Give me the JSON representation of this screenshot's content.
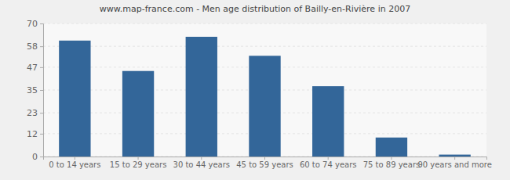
{
  "chart_data": {
    "type": "bar",
    "title": "www.map-france.com - Men age distribution of Bailly-en-Rivière in 2007",
    "categories": [
      "0 to 14 years",
      "15 to 29 years",
      "30 to 44 years",
      "45 to 59 years",
      "60 to 74 years",
      "75 to 89 years",
      "90 years and more"
    ],
    "values": [
      61,
      45,
      63,
      53,
      37,
      10,
      1
    ],
    "color": "#336699",
    "ylim": [
      0,
      70
    ],
    "yticks": [
      0,
      12,
      23,
      35,
      47,
      58,
      70
    ],
    "grid": true
  }
}
